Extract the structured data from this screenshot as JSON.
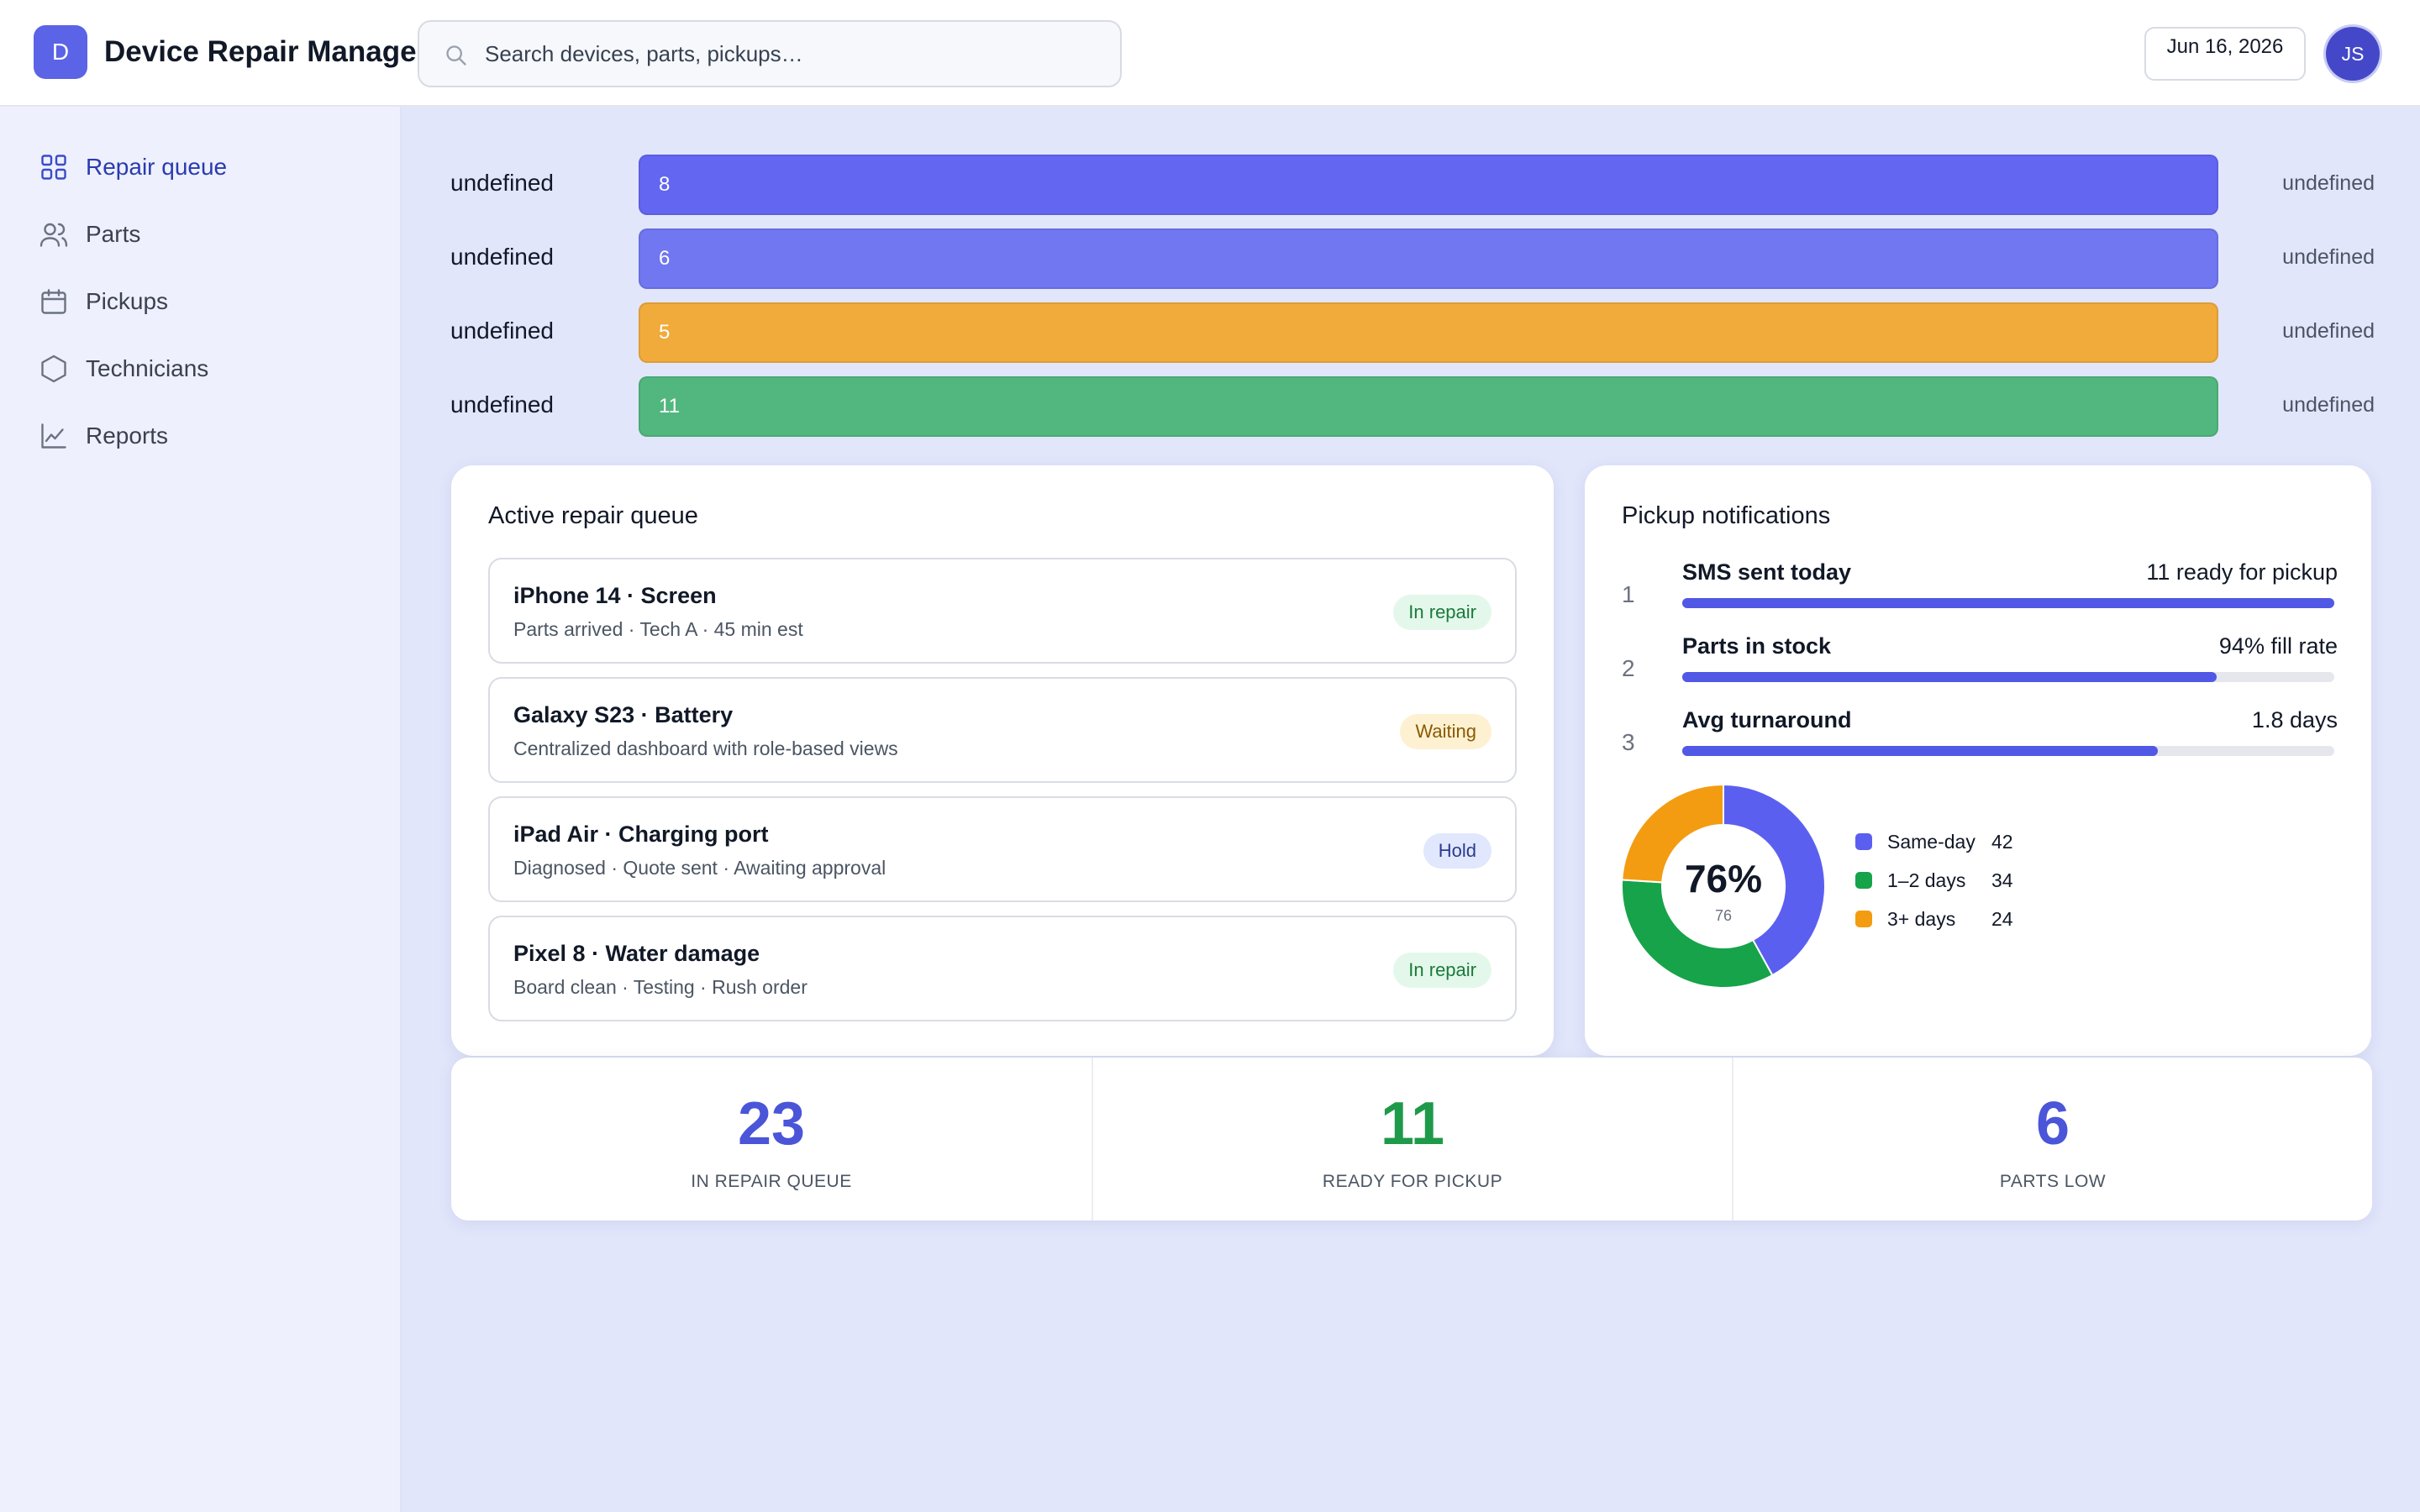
{
  "app": {
    "logo_letter": "D",
    "title": "Device Repair Manager"
  },
  "header": {
    "search_placeholder": "Search devices, parts, pickups…",
    "date": "Jun 16, 2026",
    "avatar_initials": "JS"
  },
  "sidebar": {
    "items": [
      {
        "label": "Repair queue",
        "icon": "grid-icon",
        "active": true
      },
      {
        "label": "Parts",
        "icon": "users-icon",
        "active": false
      },
      {
        "label": "Pickups",
        "icon": "calendar-icon",
        "active": false
      },
      {
        "label": "Technicians",
        "icon": "hexagon-icon",
        "active": false
      },
      {
        "label": "Reports",
        "icon": "line-chart-icon",
        "active": false
      }
    ]
  },
  "bars": [
    {
      "label": "undefined",
      "value": "8",
      "right": "undefined",
      "color": "#6366f1"
    },
    {
      "label": "undefined",
      "value": "6",
      "right": "undefined",
      "color": "#7077f0"
    },
    {
      "label": "undefined",
      "value": "5",
      "right": "undefined",
      "color": "#f0ab3b"
    },
    {
      "label": "undefined",
      "value": "11",
      "right": "undefined",
      "color": "#52b77e"
    }
  ],
  "queue": {
    "title": "Active repair queue",
    "items": [
      {
        "title": "iPhone 14 · Screen",
        "subtitle": "Parts arrived · Tech A · 45 min est",
        "status": "In repair",
        "status_bg": "#e3f8ea",
        "status_color": "#1b7a3c"
      },
      {
        "title": "Galaxy S23 · Battery",
        "subtitle": "Centralized dashboard with role-based views",
        "status": "Waiting",
        "status_bg": "#fdf1d2",
        "status_color": "#8a5a00"
      },
      {
        "title": "iPad Air · Charging port",
        "subtitle": "Diagnosed · Quote sent · Awaiting approval",
        "status": "Hold",
        "status_bg": "#e1e7fc",
        "status_color": "#2a3b8f"
      },
      {
        "title": "Pixel 8 · Water damage",
        "subtitle": "Board clean · Testing · Rush order",
        "status": "In repair",
        "status_bg": "#e3f8ea",
        "status_color": "#1b7a3c"
      }
    ]
  },
  "pickup": {
    "title": "Pickup notifications",
    "rows": [
      {
        "num": "1",
        "label": "SMS sent today",
        "value": "11 ready for pickup",
        "fill": 1.0
      },
      {
        "num": "2",
        "label": "Parts in stock",
        "value": "94% fill rate",
        "fill": 0.82
      },
      {
        "num": "3",
        "label": "Avg turnaround",
        "value": "1.8 days",
        "fill": 0.73
      }
    ],
    "donut": {
      "center_value": "76%",
      "center_sub": "76",
      "segments": [
        {
          "label": "Same-day",
          "value": 42,
          "display": "42",
          "color": "#5b5ff0"
        },
        {
          "label": "1–2 days",
          "value": 34,
          "display": "34",
          "color": "#16a34a"
        },
        {
          "label": "3+ days",
          "value": 24,
          "display": "24",
          "color": "#f39c12"
        }
      ]
    }
  },
  "stats": [
    {
      "value": "23",
      "label": "IN REPAIR QUEUE",
      "color": "#4b55d8"
    },
    {
      "value": "11",
      "label": "READY FOR PICKUP",
      "color": "#1f9a4a"
    },
    {
      "value": "6",
      "label": "PARTS LOW",
      "color": "#4b55d8"
    }
  ]
}
